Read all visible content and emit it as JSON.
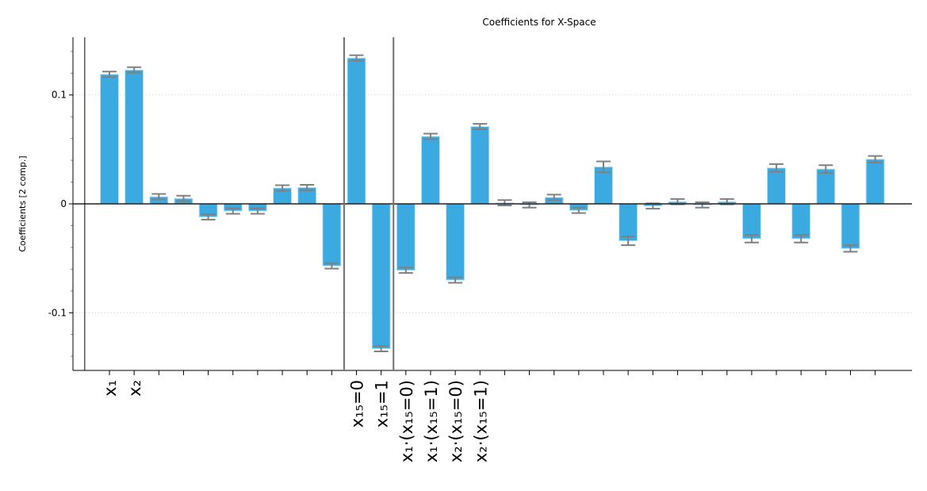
{
  "chart_data": {
    "type": "bar",
    "title": "Coefficients for X-Space",
    "xlabel": "",
    "ylabel": "Coefficients [2 comp.]",
    "ylim": [
      -0.153,
      0.153
    ],
    "yticks": [
      -0.1,
      0,
      0.1
    ],
    "ytick_labels": [
      "-0.1",
      "0",
      "0.1"
    ],
    "grid": "horizontal dotted at major ticks",
    "legend": "none",
    "bar_color": "#3aaae0",
    "errorbar_color": "#808080",
    "categories": [
      "x₁",
      "x₂",
      "",
      "",
      "",
      "",
      "",
      "",
      "",
      "",
      "x₁₅=0",
      "x₁₅=1",
      "x₁·(x₁₅=0)",
      "x₁·(x₁₅=1)",
      "x₂·(x₁₅=0)",
      "x₂·(x₁₅=1)",
      "",
      "",
      "",
      "",
      "",
      "",
      "",
      "",
      "",
      "",
      "",
      "",
      "",
      "",
      "",
      ""
    ],
    "values": [
      0.119,
      0.123,
      0.0066,
      0.005,
      -0.012,
      -0.0066,
      -0.0066,
      0.0146,
      0.015,
      -0.057,
      0.134,
      -0.133,
      -0.061,
      0.062,
      -0.07,
      0.071,
      0.001,
      -0.001,
      0.006,
      -0.006,
      0.034,
      -0.034,
      -0.002,
      0.002,
      -0.001,
      0.002,
      -0.032,
      0.033,
      -0.032,
      0.032,
      -0.041,
      0.041
    ],
    "errors": [
      0.0025,
      0.0025,
      0.0025,
      0.0025,
      0.0025,
      0.0025,
      0.0025,
      0.0025,
      0.0025,
      0.0025,
      0.0025,
      0.0025,
      0.0025,
      0.0025,
      0.0025,
      0.0025,
      0.0025,
      0.0025,
      0.0025,
      0.0025,
      0.005,
      0.004,
      0.0025,
      0.0025,
      0.0025,
      0.0025,
      0.0035,
      0.0035,
      0.0035,
      0.0035,
      0.003,
      0.003
    ],
    "group_separators_after": [
      10,
      12
    ]
  }
}
